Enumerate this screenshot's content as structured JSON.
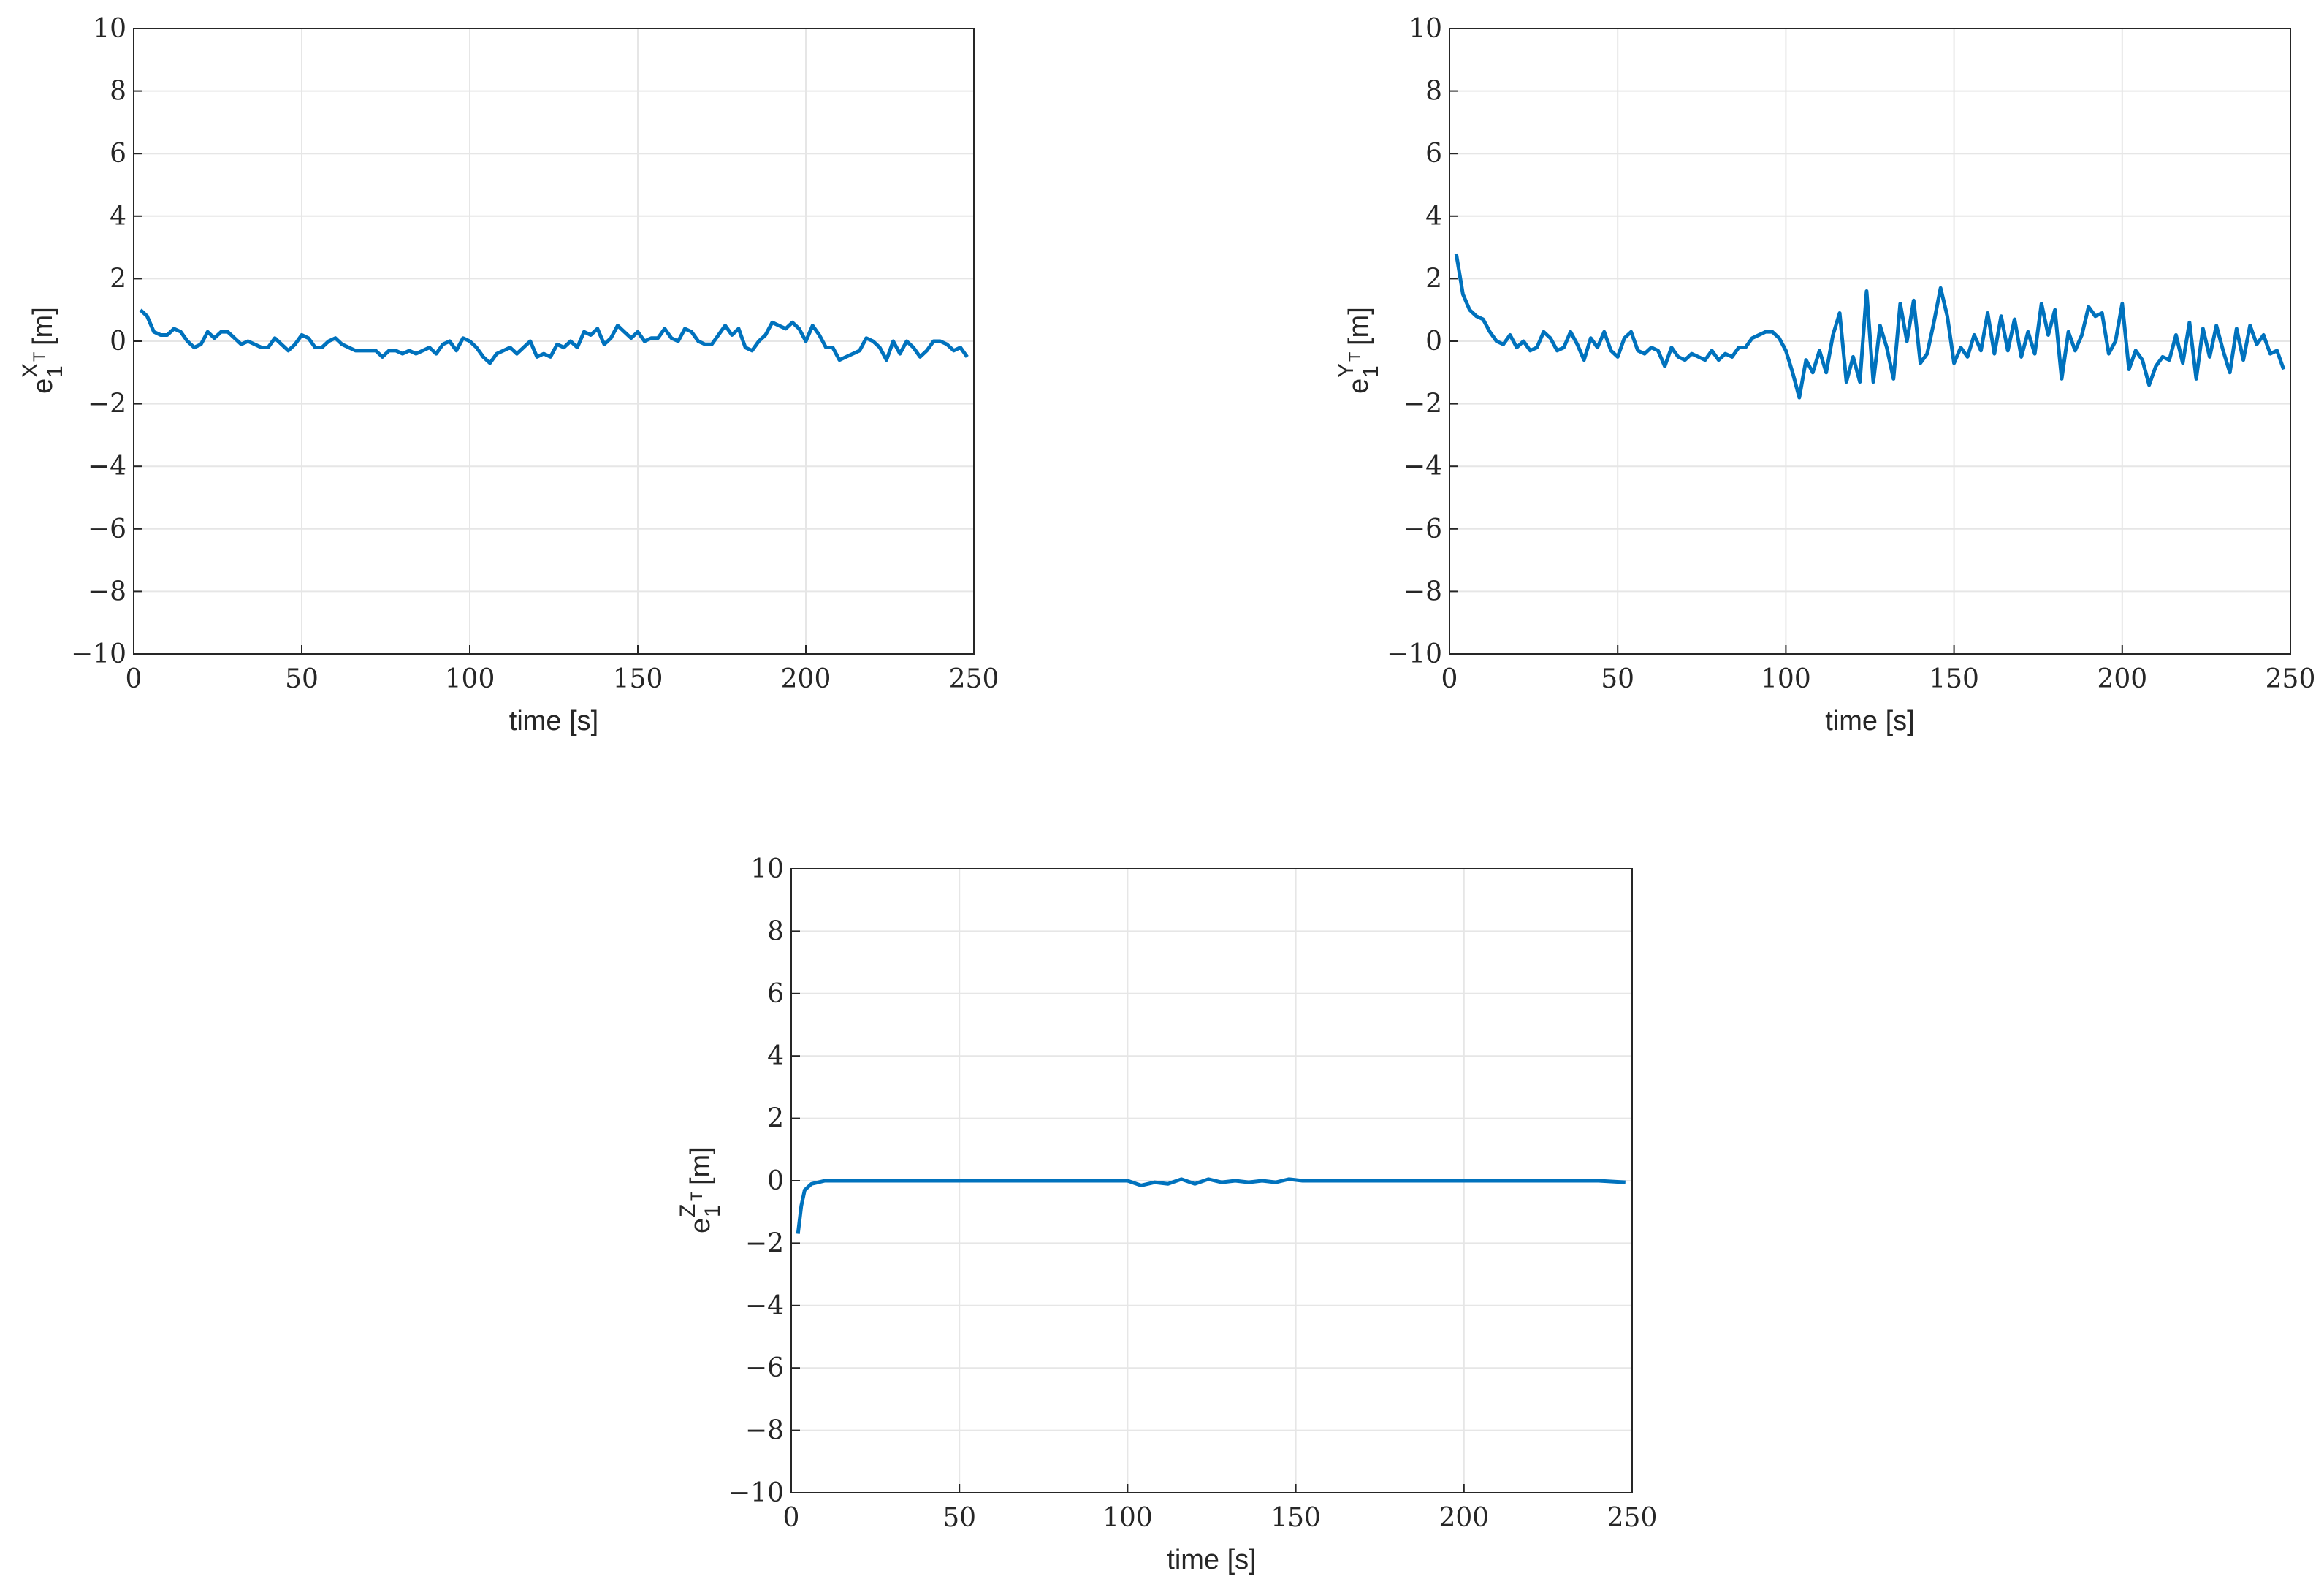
{
  "chart_data": [
    {
      "type": "line",
      "xlabel": "time [s]",
      "ylabel": {
        "base": "e",
        "subscript": "1",
        "superscript": "X",
        "superscript_subscript": "T",
        "unit": "[m]"
      },
      "color": "#0072bd",
      "grid": true,
      "xlim": [
        0,
        250
      ],
      "ylim": [
        -10,
        10
      ],
      "xticks": [
        0,
        50,
        100,
        150,
        200,
        250
      ],
      "yticks": [
        {
          "value": -10,
          "label": "−10"
        },
        {
          "value": -8,
          "label": "−8"
        },
        {
          "value": -6,
          "label": "−6"
        },
        {
          "value": -4,
          "label": "−4"
        },
        {
          "value": -2,
          "label": "−2"
        },
        0,
        2,
        4,
        6,
        8,
        10
      ],
      "x": [
        2,
        4,
        6,
        8,
        10,
        12,
        14,
        16,
        18,
        20,
        22,
        24,
        26,
        28,
        30,
        32,
        34,
        36,
        38,
        40,
        42,
        44,
        46,
        48,
        50,
        52,
        54,
        56,
        58,
        60,
        62,
        64,
        66,
        68,
        70,
        72,
        74,
        76,
        78,
        80,
        82,
        84,
        86,
        88,
        90,
        92,
        94,
        96,
        98,
        100,
        102,
        104,
        106,
        108,
        110,
        112,
        114,
        116,
        118,
        120,
        122,
        124,
        126,
        128,
        130,
        132,
        134,
        136,
        138,
        140,
        142,
        144,
        146,
        148,
        150,
        152,
        154,
        156,
        158,
        160,
        162,
        164,
        166,
        168,
        170,
        172,
        174,
        176,
        178,
        180,
        182,
        184,
        186,
        188,
        190,
        192,
        194,
        196,
        198,
        200,
        202,
        204,
        206,
        208,
        210,
        212,
        214,
        216,
        218,
        220,
        222,
        224,
        226,
        228,
        230,
        232,
        234,
        236,
        238,
        240,
        242,
        244,
        246,
        248
      ],
      "values": [
        1.0,
        0.8,
        0.3,
        0.2,
        0.2,
        0.4,
        0.3,
        0.0,
        -0.2,
        -0.1,
        0.3,
        0.1,
        0.3,
        0.3,
        0.1,
        -0.1,
        0.0,
        -0.1,
        -0.2,
        -0.2,
        0.1,
        -0.1,
        -0.3,
        -0.1,
        0.2,
        0.1,
        -0.2,
        -0.2,
        0.0,
        0.1,
        -0.1,
        -0.2,
        -0.3,
        -0.3,
        -0.3,
        -0.3,
        -0.5,
        -0.3,
        -0.3,
        -0.4,
        -0.3,
        -0.4,
        -0.3,
        -0.2,
        -0.4,
        -0.1,
        0.0,
        -0.3,
        0.1,
        0.0,
        -0.2,
        -0.5,
        -0.7,
        -0.4,
        -0.3,
        -0.2,
        -0.4,
        -0.2,
        0.0,
        -0.5,
        -0.4,
        -0.5,
        -0.1,
        -0.2,
        0.0,
        -0.2,
        0.3,
        0.2,
        0.4,
        -0.1,
        0.1,
        0.5,
        0.3,
        0.1,
        0.3,
        0.0,
        0.1,
        0.1,
        0.4,
        0.1,
        0.0,
        0.4,
        0.3,
        0.0,
        -0.1,
        -0.1,
        0.2,
        0.5,
        0.2,
        0.4,
        -0.2,
        -0.3,
        0.0,
        0.2,
        0.6,
        0.5,
        0.4,
        0.6,
        0.4,
        0.0,
        0.5,
        0.2,
        -0.2,
        -0.2,
        -0.6,
        -0.5,
        -0.4,
        -0.3,
        0.1,
        0.0,
        -0.2,
        -0.6,
        0.0,
        -0.4,
        0.0,
        -0.2,
        -0.5,
        -0.3,
        0.0,
        0.0,
        -0.1,
        -0.3,
        -0.2,
        -0.5
      ]
    },
    {
      "type": "line",
      "xlabel": "time [s]",
      "ylabel": {
        "base": "e",
        "subscript": "1",
        "superscript": "Y",
        "superscript_subscript": "T",
        "unit": "[m]"
      },
      "color": "#0072bd",
      "grid": true,
      "xlim": [
        0,
        250
      ],
      "ylim": [
        -10,
        10
      ],
      "xticks": [
        0,
        50,
        100,
        150,
        200,
        250
      ],
      "yticks": [
        {
          "value": -10,
          "label": "−10"
        },
        {
          "value": -8,
          "label": "−8"
        },
        {
          "value": -6,
          "label": "−6"
        },
        {
          "value": -4,
          "label": "−4"
        },
        {
          "value": -2,
          "label": "−2"
        },
        0,
        2,
        4,
        6,
        8,
        10
      ],
      "x": [
        2,
        4,
        6,
        8,
        10,
        12,
        14,
        16,
        18,
        20,
        22,
        24,
        26,
        28,
        30,
        32,
        34,
        36,
        38,
        40,
        42,
        44,
        46,
        48,
        50,
        52,
        54,
        56,
        58,
        60,
        62,
        64,
        66,
        68,
        70,
        72,
        74,
        76,
        78,
        80,
        82,
        84,
        86,
        88,
        90,
        92,
        94,
        96,
        98,
        100,
        102,
        104,
        106,
        108,
        110,
        112,
        114,
        116,
        118,
        120,
        122,
        124,
        126,
        128,
        130,
        132,
        134,
        136,
        138,
        140,
        142,
        144,
        146,
        148,
        150,
        152,
        154,
        156,
        158,
        160,
        162,
        164,
        166,
        168,
        170,
        172,
        174,
        176,
        178,
        180,
        182,
        184,
        186,
        188,
        190,
        192,
        194,
        196,
        198,
        200,
        202,
        204,
        206,
        208,
        210,
        212,
        214,
        216,
        218,
        220,
        222,
        224,
        226,
        228,
        230,
        232,
        234,
        236,
        238,
        240,
        242,
        244,
        246,
        248
      ],
      "values": [
        2.8,
        1.5,
        1.0,
        0.8,
        0.7,
        0.3,
        0.0,
        -0.1,
        0.2,
        -0.2,
        0.0,
        -0.3,
        -0.2,
        0.3,
        0.1,
        -0.3,
        -0.2,
        0.3,
        -0.1,
        -0.6,
        0.1,
        -0.2,
        0.3,
        -0.3,
        -0.5,
        0.1,
        0.3,
        -0.3,
        -0.4,
        -0.2,
        -0.3,
        -0.8,
        -0.2,
        -0.5,
        -0.6,
        -0.4,
        -0.5,
        -0.6,
        -0.3,
        -0.6,
        -0.4,
        -0.5,
        -0.2,
        -0.2,
        0.1,
        0.2,
        0.3,
        0.3,
        0.1,
        -0.3,
        -1.0,
        -1.8,
        -0.6,
        -1.0,
        -0.3,
        -1.0,
        0.2,
        0.9,
        -1.3,
        -0.5,
        -1.3,
        1.6,
        -1.3,
        0.5,
        -0.2,
        -1.2,
        1.2,
        0.0,
        1.3,
        -0.7,
        -0.4,
        0.6,
        1.7,
        0.8,
        -0.7,
        -0.2,
        -0.5,
        0.2,
        -0.3,
        0.9,
        -0.4,
        0.8,
        -0.3,
        0.7,
        -0.5,
        0.3,
        -0.4,
        1.2,
        0.2,
        1.0,
        -1.2,
        0.3,
        -0.3,
        0.2,
        1.1,
        0.8,
        0.9,
        -0.4,
        0.0,
        1.2,
        -0.9,
        -0.3,
        -0.6,
        -1.4,
        -0.8,
        -0.5,
        -0.6,
        0.2,
        -0.7,
        0.6,
        -1.2,
        0.4,
        -0.5,
        0.5,
        -0.3,
        -1.0,
        0.4,
        -0.6,
        0.5,
        -0.1,
        0.2,
        -0.4,
        -0.3,
        -0.9
      ]
    },
    {
      "type": "line",
      "xlabel": "time [s]",
      "ylabel": {
        "base": "e",
        "subscript": "1",
        "superscript": "Z",
        "superscript_subscript": "T",
        "unit": "[m]"
      },
      "color": "#0072bd",
      "grid": true,
      "xlim": [
        0,
        250
      ],
      "ylim": [
        -10,
        10
      ],
      "xticks": [
        0,
        50,
        100,
        150,
        200,
        250
      ],
      "yticks": [
        {
          "value": -10,
          "label": "−10"
        },
        {
          "value": -8,
          "label": "−8"
        },
        {
          "value": -6,
          "label": "−6"
        },
        {
          "value": -4,
          "label": "−4"
        },
        {
          "value": -2,
          "label": "−2"
        },
        0,
        2,
        4,
        6,
        8,
        10
      ],
      "x": [
        2,
        3,
        4,
        6,
        8,
        10,
        20,
        30,
        40,
        50,
        60,
        70,
        80,
        90,
        100,
        104,
        108,
        112,
        116,
        120,
        124,
        128,
        132,
        136,
        140,
        144,
        148,
        152,
        160,
        170,
        180,
        190,
        200,
        210,
        220,
        230,
        240,
        248
      ],
      "values": [
        -1.7,
        -0.8,
        -0.3,
        -0.1,
        -0.05,
        0,
        0,
        0,
        0,
        0,
        0,
        0,
        0,
        0,
        0,
        -0.15,
        -0.05,
        -0.1,
        0.05,
        -0.1,
        0.05,
        -0.05,
        0,
        -0.05,
        0,
        -0.05,
        0.05,
        0,
        0,
        0,
        0,
        0,
        0,
        0,
        0,
        0,
        0,
        -0.05
      ]
    }
  ]
}
